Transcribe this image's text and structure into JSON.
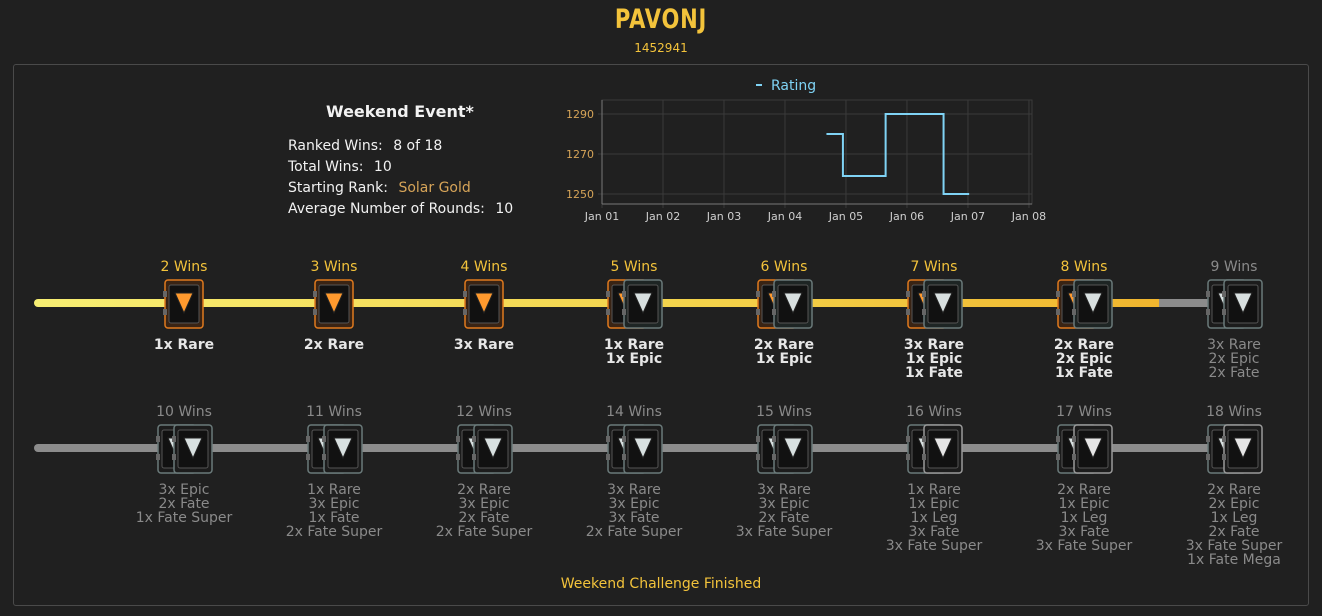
{
  "header": {
    "player_name": "PAVONJ",
    "player_id": "1452941"
  },
  "event": {
    "title": "Weekend Event*",
    "stats": [
      {
        "label": "Ranked Wins:",
        "value": "8 of 18"
      },
      {
        "label": "Total Wins:",
        "value": "10"
      },
      {
        "label": "Starting Rank:",
        "value": "Solar Gold"
      },
      {
        "label": "Average Number of Rounds:",
        "value": "10"
      }
    ]
  },
  "chart_data": {
    "type": "line",
    "step": true,
    "legend": "Rating",
    "legend_position": "top-center",
    "x_ticks": [
      "Jan 01",
      "Jan 02",
      "Jan 03",
      "Jan 04",
      "Jan 05",
      "Jan 06",
      "Jan 07",
      "Jan 08"
    ],
    "y_ticks": [
      1250,
      1270,
      1290
    ],
    "ylim": [
      1245,
      1297
    ],
    "grid": true,
    "series": [
      {
        "name": "Rating",
        "color": "#7fd3f5",
        "points": [
          {
            "x": 3.68,
            "y": 1280
          },
          {
            "x": 3.95,
            "y": 1280
          },
          {
            "x": 3.95,
            "y": 1259
          },
          {
            "x": 4.65,
            "y": 1259
          },
          {
            "x": 4.65,
            "y": 1290
          },
          {
            "x": 5.6,
            "y": 1290
          },
          {
            "x": 5.6,
            "y": 1250
          },
          {
            "x": 6.02,
            "y": 1250
          }
        ]
      }
    ]
  },
  "colors": {
    "gold": "#f3c33b",
    "track_grey": "#8c8c8c",
    "rank": "#d6a458"
  },
  "rewards_row1": [
    {
      "wins": "2 Wins",
      "achieved": true,
      "box": "rare",
      "lines": [
        "1x Rare"
      ]
    },
    {
      "wins": "3 Wins",
      "achieved": true,
      "box": "rare",
      "lines": [
        "2x Rare"
      ]
    },
    {
      "wins": "4 Wins",
      "achieved": true,
      "box": "rare",
      "lines": [
        "3x Rare"
      ]
    },
    {
      "wins": "5 Wins",
      "achieved": true,
      "box": "rare-epic",
      "lines": [
        "1x Rare",
        "1x Epic"
      ]
    },
    {
      "wins": "6 Wins",
      "achieved": true,
      "box": "rare-epic",
      "lines": [
        "2x Rare",
        "1x Epic"
      ]
    },
    {
      "wins": "7 Wins",
      "achieved": true,
      "box": "rare-epic",
      "lines": [
        "3x Rare",
        "1x Epic",
        "1x Fate"
      ]
    },
    {
      "wins": "8 Wins",
      "achieved": true,
      "box": "rare-epic",
      "lines": [
        "2x Rare",
        "2x Epic",
        "1x Fate"
      ]
    },
    {
      "wins": "9 Wins",
      "achieved": false,
      "box": "epic-epic",
      "lines": [
        "3x Rare",
        "2x Epic",
        "2x Fate"
      ]
    }
  ],
  "rewards_row2": [
    {
      "wins": "10 Wins",
      "achieved": false,
      "box": "epic-epic",
      "lines": [
        "3x Epic",
        "2x Fate",
        "1x Fate Super"
      ]
    },
    {
      "wins": "11 Wins",
      "achieved": false,
      "box": "epic-epic",
      "lines": [
        "1x Rare",
        "3x Epic",
        "1x Fate",
        "2x Fate Super"
      ]
    },
    {
      "wins": "12 Wins",
      "achieved": false,
      "box": "epic-epic",
      "lines": [
        "2x Rare",
        "3x Epic",
        "2x Fate",
        "2x Fate Super"
      ]
    },
    {
      "wins": "14 Wins",
      "achieved": false,
      "box": "epic-epic",
      "lines": [
        "3x Rare",
        "3x Epic",
        "3x Fate",
        "2x Fate Super"
      ]
    },
    {
      "wins": "15 Wins",
      "achieved": false,
      "box": "epic-epic",
      "lines": [
        "3x Rare",
        "3x Epic",
        "2x Fate",
        "3x Fate Super"
      ]
    },
    {
      "wins": "16 Wins",
      "achieved": false,
      "box": "epic-leg",
      "lines": [
        "1x Rare",
        "1x Epic",
        "1x Leg",
        "3x Fate",
        "3x Fate Super"
      ]
    },
    {
      "wins": "17 Wins",
      "achieved": false,
      "box": "epic-leg",
      "lines": [
        "2x Rare",
        "1x Epic",
        "1x Leg",
        "3x Fate",
        "3x Fate Super"
      ]
    },
    {
      "wins": "18 Wins",
      "achieved": false,
      "box": "epic-leg",
      "lines": [
        "2x Rare",
        "2x Epic",
        "1x Leg",
        "2x Fate",
        "3x Fate Super",
        "1x Fate Mega"
      ]
    }
  ],
  "footer": {
    "status": "Weekend Challenge Finished"
  }
}
